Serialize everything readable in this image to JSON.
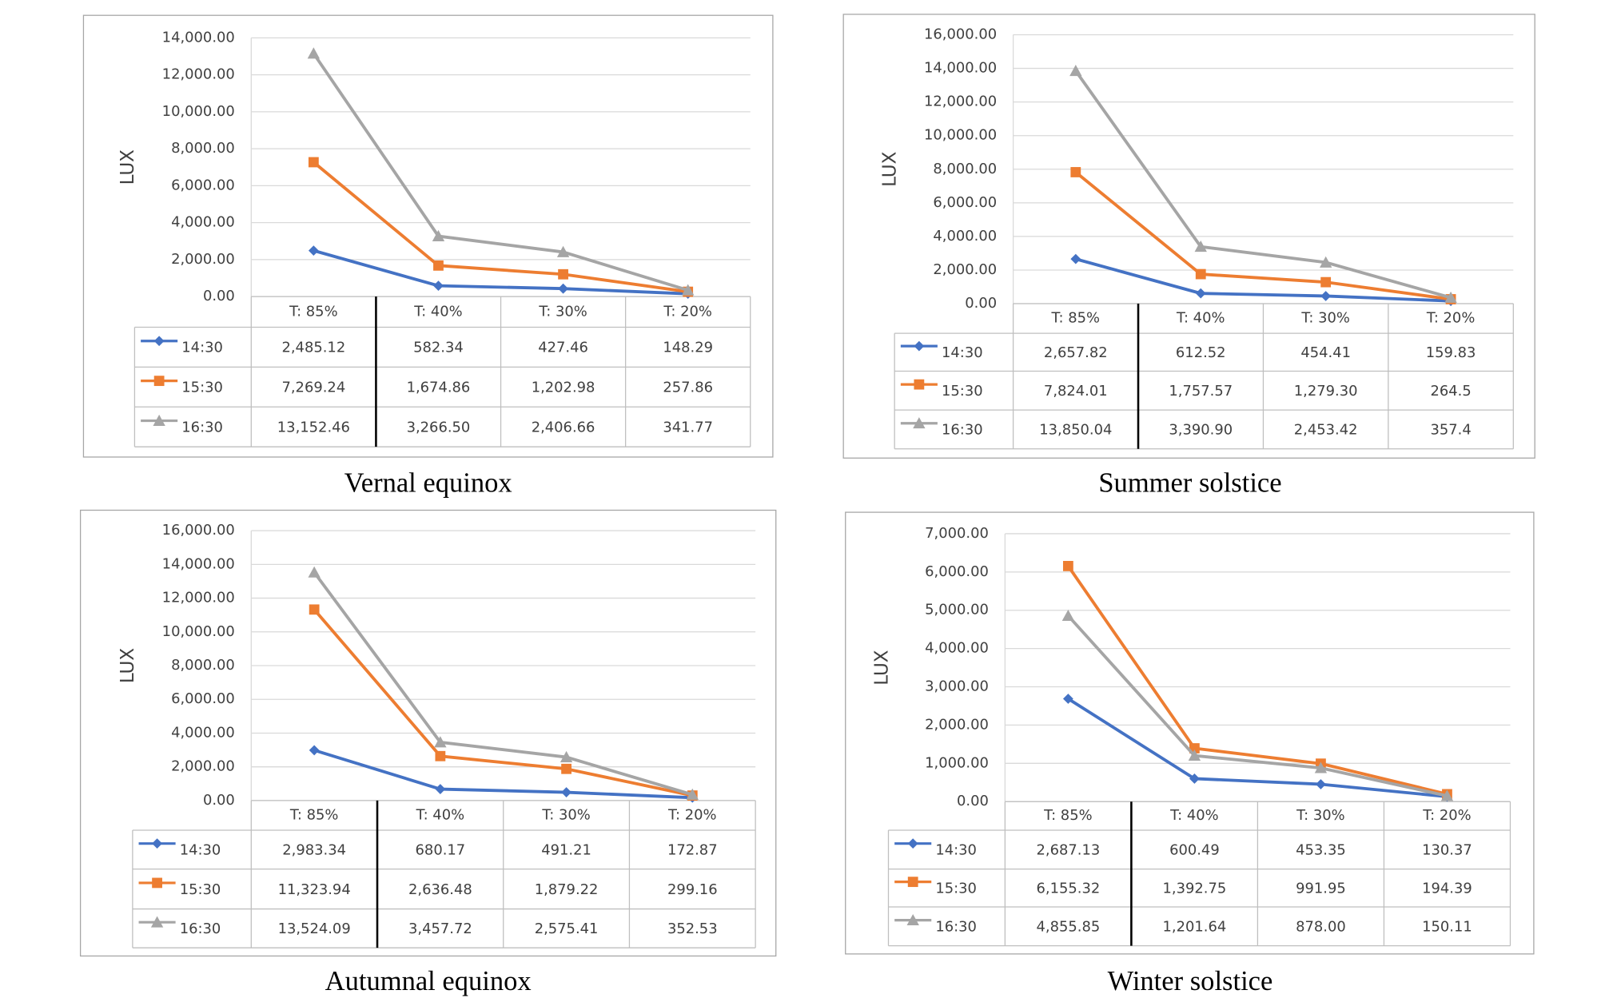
{
  "chart_data": [
    {
      "type": "line",
      "title": "Vernal equinox",
      "y_label": "LUX",
      "categories": [
        "T: 85%",
        "T: 40%",
        "T: 30%",
        "T: 20%"
      ],
      "ylim": [
        0,
        14000
      ],
      "grid": true,
      "legend": "table",
      "yticks": [
        {
          "value": 0,
          "label": "0.00"
        },
        {
          "value": 2000,
          "label": "2,000.00"
        },
        {
          "value": 4000,
          "label": "4,000.00"
        },
        {
          "value": 6000,
          "label": "6,000.00"
        },
        {
          "value": 8000,
          "label": "8,000.00"
        },
        {
          "value": 10000,
          "label": "10,000.00"
        },
        {
          "value": 12000,
          "label": "12,000.00"
        },
        {
          "value": 14000,
          "label": "14,000.00"
        }
      ],
      "series": [
        {
          "name": "14:30",
          "color": "#4472c4",
          "marker": "diamond",
          "values": [
            2485.12,
            582.34,
            427.46,
            148.29
          ],
          "value_labels": [
            "2,485.12",
            "582.34",
            "427.46",
            "148.29"
          ]
        },
        {
          "name": "15:30",
          "color": "#ed7d31",
          "marker": "square",
          "values": [
            7269.24,
            1674.86,
            1202.98,
            257.86
          ],
          "value_labels": [
            "7,269.24",
            "1,674.86",
            "1,202.98",
            "257.86"
          ]
        },
        {
          "name": "16:30",
          "color": "#a5a5a5",
          "marker": "triangle",
          "values": [
            13152.46,
            3266.5,
            2406.66,
            341.77
          ],
          "value_labels": [
            "13,152.46",
            "3,266.50",
            "2,406.66",
            "341.77"
          ]
        }
      ]
    },
    {
      "type": "line",
      "title": "Summer solstice",
      "y_label": "LUX",
      "categories": [
        "T: 85%",
        "T: 40%",
        "T: 30%",
        "T: 20%"
      ],
      "ylim": [
        0,
        16000
      ],
      "grid": true,
      "legend": "table",
      "yticks": [
        {
          "value": 0,
          "label": "0.00"
        },
        {
          "value": 2000,
          "label": "2,000.00"
        },
        {
          "value": 4000,
          "label": "4,000.00"
        },
        {
          "value": 6000,
          "label": "6,000.00"
        },
        {
          "value": 8000,
          "label": "8,000.00"
        },
        {
          "value": 10000,
          "label": "10,000.00"
        },
        {
          "value": 12000,
          "label": "12,000.00"
        },
        {
          "value": 14000,
          "label": "14,000.00"
        },
        {
          "value": 16000,
          "label": "16,000.00"
        }
      ],
      "series": [
        {
          "name": "14:30",
          "color": "#4472c4",
          "marker": "diamond",
          "values": [
            2657.82,
            612.52,
            454.41,
            159.83
          ],
          "value_labels": [
            "2,657.82",
            "612.52",
            "454.41",
            "159.83"
          ]
        },
        {
          "name": "15:30",
          "color": "#ed7d31",
          "marker": "square",
          "values": [
            7824.01,
            1757.57,
            1279.3,
            264.5
          ],
          "value_labels": [
            "7,824.01",
            "1,757.57",
            "1,279.30",
            "264.5"
          ]
        },
        {
          "name": "16:30",
          "color": "#a5a5a5",
          "marker": "triangle",
          "values": [
            13850.04,
            3390.9,
            2453.42,
            357.4
          ],
          "value_labels": [
            "13,850.04",
            "3,390.90",
            "2,453.42",
            "357.4"
          ]
        }
      ]
    },
    {
      "type": "line",
      "title": "Autumnal equinox",
      "y_label": "LUX",
      "categories": [
        "T: 85%",
        "T: 40%",
        "T: 30%",
        "T: 20%"
      ],
      "ylim": [
        0,
        16000
      ],
      "grid": true,
      "legend": "table",
      "yticks": [
        {
          "value": 0,
          "label": "0.00"
        },
        {
          "value": 2000,
          "label": "2,000.00"
        },
        {
          "value": 4000,
          "label": "4,000.00"
        },
        {
          "value": 6000,
          "label": "6,000.00"
        },
        {
          "value": 8000,
          "label": "8,000.00"
        },
        {
          "value": 10000,
          "label": "10,000.00"
        },
        {
          "value": 12000,
          "label": "12,000.00"
        },
        {
          "value": 14000,
          "label": "14,000.00"
        },
        {
          "value": 16000,
          "label": "16,000.00"
        }
      ],
      "series": [
        {
          "name": "14:30",
          "color": "#4472c4",
          "marker": "diamond",
          "values": [
            2983.34,
            680.17,
            491.21,
            172.87
          ],
          "value_labels": [
            "2,983.34",
            "680.17",
            "491.21",
            "172.87"
          ]
        },
        {
          "name": "15:30",
          "color": "#ed7d31",
          "marker": "square",
          "values": [
            11323.94,
            2636.48,
            1879.22,
            299.16
          ],
          "value_labels": [
            "11,323.94",
            "2,636.48",
            "1,879.22",
            "299.16"
          ]
        },
        {
          "name": "16:30",
          "color": "#a5a5a5",
          "marker": "triangle",
          "values": [
            13524.09,
            3457.72,
            2575.41,
            352.53
          ],
          "value_labels": [
            "13,524.09",
            "3,457.72",
            "2,575.41",
            "352.53"
          ]
        }
      ]
    },
    {
      "type": "line",
      "title": "Winter solstice",
      "y_label": "LUX",
      "categories": [
        "T: 85%",
        "T: 40%",
        "T: 30%",
        "T: 20%"
      ],
      "ylim": [
        0,
        7000
      ],
      "grid": true,
      "legend": "table",
      "yticks": [
        {
          "value": 0,
          "label": "0.00"
        },
        {
          "value": 1000,
          "label": "1,000.00"
        },
        {
          "value": 2000,
          "label": "2,000.00"
        },
        {
          "value": 3000,
          "label": "3,000.00"
        },
        {
          "value": 4000,
          "label": "4,000.00"
        },
        {
          "value": 5000,
          "label": "5,000.00"
        },
        {
          "value": 6000,
          "label": "6,000.00"
        },
        {
          "value": 7000,
          "label": "7,000.00"
        }
      ],
      "series": [
        {
          "name": "14:30",
          "color": "#4472c4",
          "marker": "diamond",
          "values": [
            2687.13,
            600.49,
            453.35,
            130.37
          ],
          "value_labels": [
            "2,687.13",
            "600.49",
            "453.35",
            "130.37"
          ]
        },
        {
          "name": "15:30",
          "color": "#ed7d31",
          "marker": "square",
          "values": [
            6155.32,
            1392.75,
            991.95,
            194.39
          ],
          "value_labels": [
            "6,155.32",
            "1,392.75",
            "991.95",
            "194.39"
          ]
        },
        {
          "name": "16:30",
          "color": "#a5a5a5",
          "marker": "triangle",
          "values": [
            4855.85,
            1201.64,
            878.0,
            150.11
          ],
          "value_labels": [
            "4,855.85",
            "1,201.64",
            "878.00",
            "150.11"
          ]
        }
      ]
    }
  ]
}
